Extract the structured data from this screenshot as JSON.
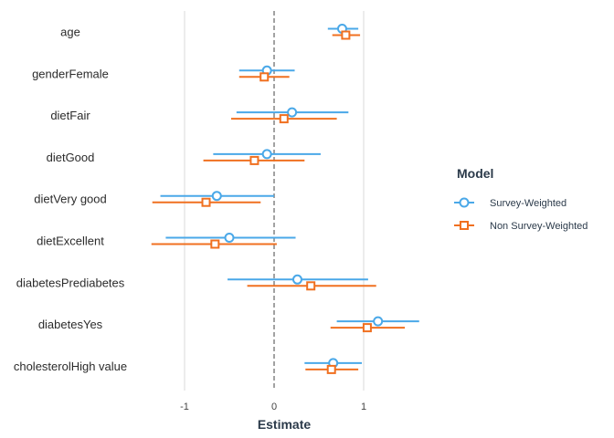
{
  "chart_data": {
    "type": "coefficient-plot",
    "xlabel": "Estimate",
    "xlim": [
      -1.9,
      1.9
    ],
    "x_ticks": [
      -1,
      0,
      1
    ],
    "x_tick_labels": [
      "-1",
      "0",
      "1"
    ],
    "reference_line": 0,
    "grid": "vertical major",
    "legend": {
      "title": "Model",
      "placement": "right"
    },
    "terms": [
      "age",
      "genderFemale",
      "dietFair",
      "dietGood",
      "dietVery good",
      "dietExcellent",
      "diabetesPrediabetes",
      "diabetesYes",
      "cholesterolHigh value"
    ],
    "series": [
      {
        "name": "Survey-Weighted",
        "color": "#4aa8e8",
        "marker": "circle",
        "estimate": [
          0.76,
          -0.08,
          0.2,
          -0.08,
          -0.64,
          -0.5,
          0.26,
          1.16,
          0.66
        ],
        "lower": [
          0.6,
          -0.39,
          -0.42,
          -0.68,
          -1.27,
          -1.21,
          -0.52,
          0.7,
          0.34
        ],
        "upper": [
          0.94,
          0.23,
          0.83,
          0.52,
          0.0,
          0.24,
          1.05,
          1.62,
          0.98
        ]
      },
      {
        "name": "Non Survey-Weighted",
        "color": "#f07020",
        "marker": "square",
        "estimate": [
          0.8,
          -0.11,
          0.11,
          -0.22,
          -0.76,
          -0.66,
          0.41,
          1.04,
          0.64
        ],
        "lower": [
          0.65,
          -0.39,
          -0.48,
          -0.79,
          -1.36,
          -1.37,
          -0.3,
          0.63,
          0.35
        ],
        "upper": [
          0.96,
          0.17,
          0.7,
          0.34,
          -0.15,
          0.03,
          1.14,
          1.46,
          0.94
        ]
      }
    ]
  }
}
